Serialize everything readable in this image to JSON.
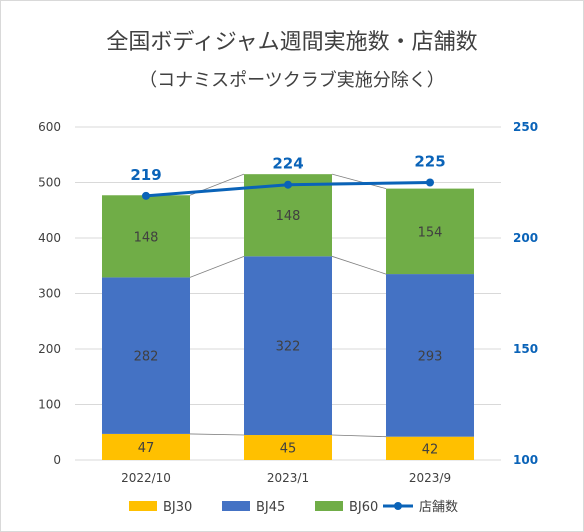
{
  "chart_data": {
    "type": "bar",
    "title": "全国ボディジャム週間実施数・店舗数",
    "subtitle": "（コナミスポーツクラブ実施分除く）",
    "categories": [
      "2022/10",
      "2023/1",
      "2023/9"
    ],
    "stacked": true,
    "series": [
      {
        "name": "BJ30",
        "values": [
          47,
          45,
          42
        ],
        "color": "#ffc000"
      },
      {
        "name": "BJ45",
        "values": [
          282,
          322,
          293
        ],
        "color": "#4472c4"
      },
      {
        "name": "BJ60",
        "values": [
          148,
          148,
          154
        ],
        "color": "#70ad47"
      }
    ],
    "line_series": {
      "name": "店舗数",
      "values": [
        219,
        224,
        225
      ],
      "color": "#0a63b8",
      "axis": "right"
    },
    "ylim": [
      0,
      600
    ],
    "y_ticks": [
      "0",
      "100",
      "200",
      "300",
      "400",
      "500",
      "600"
    ],
    "y2lim": [
      100,
      250
    ],
    "y2_ticks": [
      "100",
      "150",
      "200",
      "250"
    ],
    "grid": true,
    "legend_position": "bottom"
  }
}
